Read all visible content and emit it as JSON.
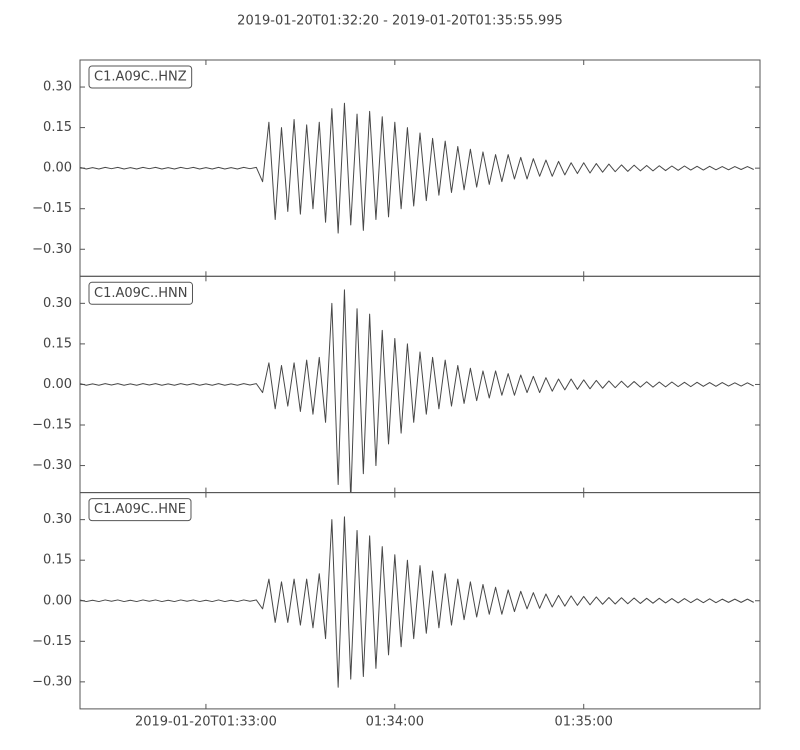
{
  "chart_data": {
    "type": "line",
    "title": "2019-01-20T01:32:20  -  2019-01-20T01:35:55.995",
    "xlim": [
      "01:32:20",
      "01:35:55.995"
    ],
    "xticks": [
      {
        "value": "01:33:00",
        "label": "2019-01-20T01:33:00"
      },
      "01:34:00",
      "01:35:00"
    ],
    "ylim": [
      -0.4,
      0.4
    ],
    "yticks": [
      {
        "value": 0.3,
        "label": "0.30"
      },
      {
        "value": 0.15,
        "label": "0.15"
      },
      {
        "value": 0,
        "label": "0.00"
      },
      {
        "value": -0.15,
        "label": "−0.15"
      },
      {
        "value": -0.3,
        "label": "−0.30"
      }
    ],
    "x": [
      "01:32:20",
      "01:32:22",
      "01:32:24",
      "01:32:26",
      "01:32:28",
      "01:32:30",
      "01:32:32",
      "01:32:34",
      "01:32:36",
      "01:32:38",
      "01:32:40",
      "01:32:42",
      "01:32:44",
      "01:32:46",
      "01:32:48",
      "01:32:50",
      "01:32:52",
      "01:32:54",
      "01:32:56",
      "01:32:58",
      "01:33:00",
      "01:33:02",
      "01:33:04",
      "01:33:06",
      "01:33:08",
      "01:33:10",
      "01:33:12",
      "01:33:14",
      "01:33:16",
      "01:33:18",
      "01:33:20",
      "01:33:22",
      "01:33:24",
      "01:33:26",
      "01:33:28",
      "01:33:30",
      "01:33:32",
      "01:33:34",
      "01:33:36",
      "01:33:38",
      "01:33:40",
      "01:33:42",
      "01:33:44",
      "01:33:46",
      "01:33:48",
      "01:33:50",
      "01:33:52",
      "01:33:54",
      "01:33:56",
      "01:33:58",
      "01:34:00",
      "01:34:02",
      "01:34:04",
      "01:34:06",
      "01:34:08",
      "01:34:10",
      "01:34:12",
      "01:34:14",
      "01:34:16",
      "01:34:18",
      "01:34:20",
      "01:34:22",
      "01:34:24",
      "01:34:26",
      "01:34:28",
      "01:34:30",
      "01:34:32",
      "01:34:34",
      "01:34:36",
      "01:34:38",
      "01:34:40",
      "01:34:42",
      "01:34:44",
      "01:34:46",
      "01:34:48",
      "01:34:50",
      "01:34:52",
      "01:34:54",
      "01:34:56",
      "01:34:58",
      "01:35:00",
      "01:35:02",
      "01:35:04",
      "01:35:06",
      "01:35:08",
      "01:35:10",
      "01:35:12",
      "01:35:14",
      "01:35:16",
      "01:35:18",
      "01:35:20",
      "01:35:22",
      "01:35:24",
      "01:35:26",
      "01:35:28",
      "01:35:30",
      "01:35:32",
      "01:35:34",
      "01:35:36",
      "01:35:38",
      "01:35:40",
      "01:35:42",
      "01:35:44",
      "01:35:46",
      "01:35:48",
      "01:35:50",
      "01:35:52",
      "01:35:54"
    ],
    "series": [
      {
        "name": "C1.A09C..HNZ",
        "color": "#484848",
        "values": [
          0.003,
          -0.003,
          0.002,
          -0.003,
          0.003,
          -0.002,
          0.003,
          -0.003,
          0.002,
          -0.003,
          0.003,
          -0.002,
          0.003,
          -0.003,
          0.002,
          -0.003,
          0.003,
          -0.002,
          0.003,
          -0.003,
          0.002,
          -0.003,
          0.003,
          -0.003,
          0.002,
          -0.003,
          0.003,
          -0.002,
          0.003,
          -0.05,
          0.17,
          -0.19,
          0.15,
          -0.16,
          0.18,
          -0.17,
          0.16,
          -0.15,
          0.17,
          -0.2,
          0.22,
          -0.24,
          0.24,
          -0.21,
          0.2,
          -0.23,
          0.21,
          -0.19,
          0.19,
          -0.18,
          0.17,
          -0.15,
          0.15,
          -0.14,
          0.13,
          -0.12,
          0.11,
          -0.1,
          0.1,
          -0.09,
          0.08,
          -0.08,
          0.07,
          -0.07,
          0.06,
          -0.06,
          0.05,
          -0.05,
          0.05,
          -0.04,
          0.04,
          -0.04,
          0.035,
          -0.03,
          0.03,
          -0.03,
          0.025,
          -0.025,
          0.02,
          -0.02,
          0.02,
          -0.018,
          0.017,
          -0.015,
          0.015,
          -0.013,
          0.012,
          -0.012,
          0.011,
          -0.01,
          0.01,
          -0.01,
          0.009,
          -0.009,
          0.008,
          -0.008,
          0.008,
          -0.007,
          0.007,
          -0.007,
          0.007,
          -0.006,
          0.006,
          -0.006,
          0.006,
          -0.005,
          0.006,
          -0.005
        ]
      },
      {
        "name": "C1.A09C..HNN",
        "color": "#484848",
        "values": [
          0.003,
          -0.003,
          0.002,
          -0.003,
          0.003,
          -0.002,
          0.003,
          -0.003,
          0.002,
          -0.003,
          0.003,
          -0.002,
          0.003,
          -0.003,
          0.002,
          -0.003,
          0.003,
          -0.002,
          0.003,
          -0.003,
          0.002,
          -0.003,
          0.003,
          -0.003,
          0.002,
          -0.003,
          0.003,
          -0.002,
          0.003,
          -0.03,
          0.08,
          -0.09,
          0.07,
          -0.08,
          0.08,
          -0.1,
          0.09,
          -0.11,
          0.1,
          -0.14,
          0.3,
          -0.37,
          0.35,
          -0.43,
          0.28,
          -0.33,
          0.26,
          -0.3,
          0.2,
          -0.22,
          0.17,
          -0.18,
          0.15,
          -0.14,
          0.12,
          -0.11,
          0.1,
          -0.09,
          0.09,
          -0.08,
          0.07,
          -0.07,
          0.06,
          -0.06,
          0.05,
          -0.05,
          0.05,
          -0.04,
          0.04,
          -0.04,
          0.035,
          -0.03,
          0.03,
          -0.03,
          0.025,
          -0.025,
          0.02,
          -0.02,
          0.02,
          -0.018,
          0.017,
          -0.016,
          0.015,
          -0.014,
          0.013,
          -0.012,
          0.012,
          -0.011,
          0.011,
          -0.01,
          0.01,
          -0.01,
          0.009,
          -0.009,
          0.009,
          -0.008,
          0.008,
          -0.008,
          0.008,
          -0.007,
          0.007,
          -0.007,
          0.007,
          -0.006,
          0.006,
          -0.006,
          0.006,
          -0.006
        ]
      },
      {
        "name": "C1.A09C..HNE",
        "color": "#484848",
        "values": [
          0.003,
          -0.003,
          0.002,
          -0.003,
          0.003,
          -0.002,
          0.003,
          -0.003,
          0.002,
          -0.003,
          0.003,
          -0.002,
          0.003,
          -0.003,
          0.002,
          -0.003,
          0.003,
          -0.002,
          0.003,
          -0.003,
          0.002,
          -0.003,
          0.003,
          -0.003,
          0.002,
          -0.003,
          0.003,
          -0.002,
          0.003,
          -0.03,
          0.08,
          -0.08,
          0.07,
          -0.08,
          0.08,
          -0.09,
          0.08,
          -0.1,
          0.1,
          -0.14,
          0.3,
          -0.32,
          0.31,
          -0.29,
          0.26,
          -0.28,
          0.24,
          -0.25,
          0.2,
          -0.2,
          0.17,
          -0.17,
          0.15,
          -0.14,
          0.13,
          -0.12,
          0.11,
          -0.1,
          0.1,
          -0.09,
          0.08,
          -0.07,
          0.07,
          -0.06,
          0.06,
          -0.05,
          0.05,
          -0.05,
          0.04,
          -0.04,
          0.035,
          -0.03,
          0.03,
          -0.028,
          0.025,
          -0.023,
          0.02,
          -0.02,
          0.018,
          -0.017,
          0.016,
          -0.015,
          0.014,
          -0.013,
          0.012,
          -0.012,
          0.011,
          -0.011,
          0.01,
          -0.01,
          0.009,
          -0.009,
          0.009,
          -0.008,
          0.008,
          -0.008,
          0.008,
          -0.007,
          0.007,
          -0.007,
          0.007,
          -0.007,
          0.006,
          -0.006,
          0.006,
          -0.006,
          0.006,
          -0.006
        ]
      }
    ]
  }
}
